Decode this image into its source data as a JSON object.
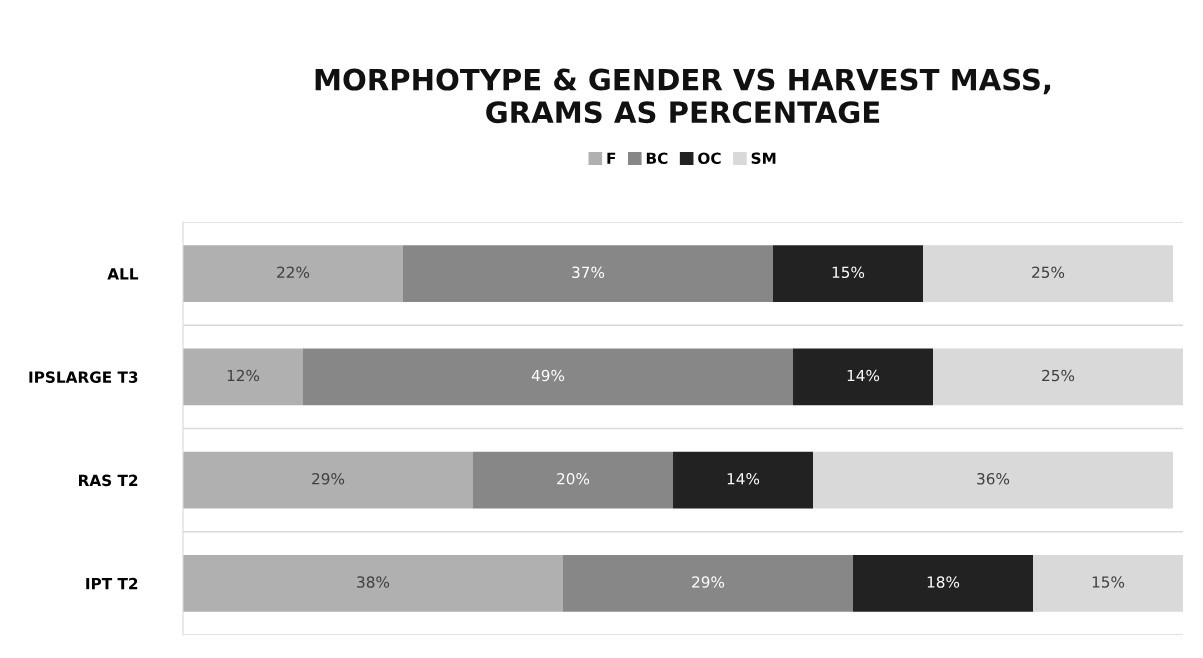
{
  "chart_data": {
    "type": "bar",
    "orientation": "horizontal",
    "stacked": true,
    "title": "MORPHOTYPE & GENDER VS HARVEST MASS,\nGRAMS AS PERCENTAGE",
    "categories": [
      "ALL",
      "IPSLARGE T3",
      "RAS T2",
      "IPT T2"
    ],
    "series": [
      {
        "name": "F",
        "color": "#b0b0b0",
        "values": [
          22,
          12,
          29,
          38
        ],
        "value_labels": [
          "22%",
          "12%",
          "29%",
          "38%"
        ]
      },
      {
        "name": "BC",
        "color": "#878787",
        "values": [
          37,
          49,
          20,
          29
        ],
        "value_labels": [
          "37%",
          "49%",
          "20%",
          "29%"
        ]
      },
      {
        "name": "OC",
        "color": "#222222",
        "values": [
          15,
          14,
          14,
          18
        ],
        "value_labels": [
          "15%",
          "14%",
          "14%",
          "18%"
        ]
      },
      {
        "name": "SM",
        "color": "#d9d9d9",
        "values": [
          25,
          25,
          36,
          15
        ],
        "value_labels": [
          "25%",
          "25%",
          "36%",
          "15%"
        ]
      }
    ],
    "legend": "top",
    "grid": "y"
  }
}
